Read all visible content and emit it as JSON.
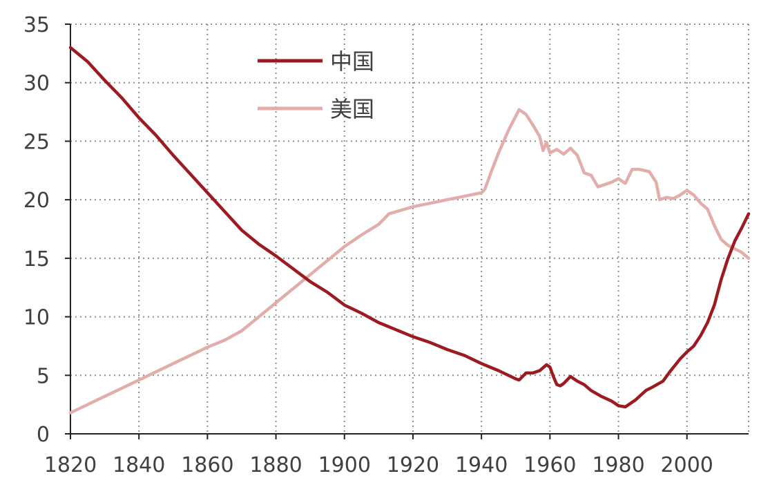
{
  "chart_data": {
    "type": "line",
    "title": "",
    "xlabel": "",
    "ylabel": "",
    "xlim": [
      1820,
      2018
    ],
    "ylim": [
      0,
      35
    ],
    "x_ticks": [
      1820,
      1840,
      1860,
      1880,
      1900,
      1920,
      1940,
      1960,
      1980,
      2000
    ],
    "y_ticks": [
      0,
      5,
      10,
      15,
      20,
      25,
      30,
      35
    ],
    "grid": true,
    "legend_position": "top-left",
    "series": [
      {
        "name": "中国",
        "color": "#9b1b21",
        "points": [
          [
            1820,
            33.0
          ],
          [
            1825,
            31.8
          ],
          [
            1830,
            30.2
          ],
          [
            1835,
            28.7
          ],
          [
            1840,
            27.0
          ],
          [
            1845,
            25.5
          ],
          [
            1850,
            23.8
          ],
          [
            1855,
            22.2
          ],
          [
            1860,
            20.6
          ],
          [
            1865,
            19.0
          ],
          [
            1870,
            17.4
          ],
          [
            1875,
            16.2
          ],
          [
            1880,
            15.2
          ],
          [
            1885,
            14.1
          ],
          [
            1890,
            13.0
          ],
          [
            1895,
            12.1
          ],
          [
            1900,
            11.0
          ],
          [
            1905,
            10.3
          ],
          [
            1910,
            9.5
          ],
          [
            1915,
            8.9
          ],
          [
            1920,
            8.3
          ],
          [
            1925,
            7.8
          ],
          [
            1930,
            7.2
          ],
          [
            1935,
            6.7
          ],
          [
            1940,
            6.0
          ],
          [
            1945,
            5.4
          ],
          [
            1950,
            4.7
          ],
          [
            1951,
            4.6
          ],
          [
            1953,
            5.2
          ],
          [
            1955,
            5.2
          ],
          [
            1957,
            5.4
          ],
          [
            1959,
            5.9
          ],
          [
            1960,
            5.7
          ],
          [
            1961,
            4.9
          ],
          [
            1962,
            4.2
          ],
          [
            1963,
            4.1
          ],
          [
            1964,
            4.3
          ],
          [
            1966,
            4.9
          ],
          [
            1968,
            4.5
          ],
          [
            1970,
            4.2
          ],
          [
            1972,
            3.7
          ],
          [
            1975,
            3.2
          ],
          [
            1978,
            2.8
          ],
          [
            1980,
            2.4
          ],
          [
            1982,
            2.3
          ],
          [
            1985,
            2.9
          ],
          [
            1988,
            3.7
          ],
          [
            1990,
            4.0
          ],
          [
            1993,
            4.5
          ],
          [
            1995,
            5.3
          ],
          [
            1998,
            6.4
          ],
          [
            2000,
            7.0
          ],
          [
            2002,
            7.5
          ],
          [
            2004,
            8.4
          ],
          [
            2006,
            9.5
          ],
          [
            2008,
            11.0
          ],
          [
            2010,
            13.2
          ],
          [
            2012,
            15.0
          ],
          [
            2014,
            16.5
          ],
          [
            2016,
            17.6
          ],
          [
            2018,
            18.8
          ]
        ]
      },
      {
        "name": "美国",
        "color": "#e2aeab",
        "points": [
          [
            1820,
            1.8
          ],
          [
            1830,
            3.2
          ],
          [
            1840,
            4.6
          ],
          [
            1850,
            6.0
          ],
          [
            1860,
            7.4
          ],
          [
            1865,
            8.0
          ],
          [
            1870,
            8.8
          ],
          [
            1875,
            10.0
          ],
          [
            1880,
            11.2
          ],
          [
            1885,
            12.4
          ],
          [
            1890,
            13.6
          ],
          [
            1895,
            14.8
          ],
          [
            1900,
            16.0
          ],
          [
            1905,
            17.0
          ],
          [
            1910,
            17.9
          ],
          [
            1913,
            18.8
          ],
          [
            1920,
            19.4
          ],
          [
            1925,
            19.7
          ],
          [
            1930,
            20.0
          ],
          [
            1935,
            20.3
          ],
          [
            1940,
            20.6
          ],
          [
            1941,
            20.9
          ],
          [
            1943,
            22.5
          ],
          [
            1945,
            24.0
          ],
          [
            1948,
            26.0
          ],
          [
            1951,
            27.7
          ],
          [
            1953,
            27.3
          ],
          [
            1955,
            26.4
          ],
          [
            1957,
            25.4
          ],
          [
            1958,
            24.2
          ],
          [
            1959,
            24.9
          ],
          [
            1960,
            24.0
          ],
          [
            1962,
            24.3
          ],
          [
            1964,
            23.9
          ],
          [
            1966,
            24.4
          ],
          [
            1968,
            23.8
          ],
          [
            1970,
            22.3
          ],
          [
            1972,
            22.1
          ],
          [
            1974,
            21.1
          ],
          [
            1976,
            21.3
          ],
          [
            1978,
            21.5
          ],
          [
            1980,
            21.8
          ],
          [
            1982,
            21.4
          ],
          [
            1984,
            22.6
          ],
          [
            1986,
            22.6
          ],
          [
            1989,
            22.4
          ],
          [
            1991,
            21.5
          ],
          [
            1992,
            20.0
          ],
          [
            1994,
            20.2
          ],
          [
            1996,
            20.1
          ],
          [
            1998,
            20.4
          ],
          [
            2000,
            20.8
          ],
          [
            2002,
            20.4
          ],
          [
            2004,
            19.7
          ],
          [
            2006,
            19.2
          ],
          [
            2008,
            17.8
          ],
          [
            2010,
            16.6
          ],
          [
            2012,
            16.1
          ],
          [
            2014,
            15.8
          ],
          [
            2016,
            15.5
          ],
          [
            2018,
            15.0
          ]
        ]
      }
    ]
  }
}
